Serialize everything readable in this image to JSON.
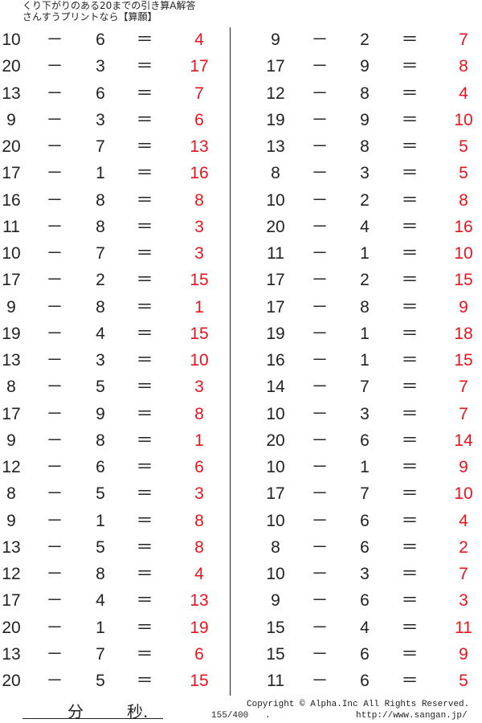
{
  "header": {
    "title": "くり下がりのある20までの引き算A解答",
    "subtitle": "さんすうプリントなら【算願】"
  },
  "operator": "－",
  "equals": "＝",
  "colors": {
    "answer": "#e8141e",
    "text": "#222222"
  },
  "left_problems": [
    {
      "a": "10",
      "b": "6",
      "answer": "4"
    },
    {
      "a": "20",
      "b": "3",
      "answer": "17"
    },
    {
      "a": "13",
      "b": "6",
      "answer": "7"
    },
    {
      "a": "9",
      "b": "3",
      "answer": "6"
    },
    {
      "a": "20",
      "b": "7",
      "answer": "13"
    },
    {
      "a": "17",
      "b": "1",
      "answer": "16"
    },
    {
      "a": "16",
      "b": "8",
      "answer": "8"
    },
    {
      "a": "11",
      "b": "8",
      "answer": "3"
    },
    {
      "a": "10",
      "b": "7",
      "answer": "3"
    },
    {
      "a": "17",
      "b": "2",
      "answer": "15"
    },
    {
      "a": "9",
      "b": "8",
      "answer": "1"
    },
    {
      "a": "19",
      "b": "4",
      "answer": "15"
    },
    {
      "a": "13",
      "b": "3",
      "answer": "10"
    },
    {
      "a": "8",
      "b": "5",
      "answer": "3"
    },
    {
      "a": "17",
      "b": "9",
      "answer": "8"
    },
    {
      "a": "9",
      "b": "8",
      "answer": "1"
    },
    {
      "a": "12",
      "b": "6",
      "answer": "6"
    },
    {
      "a": "8",
      "b": "5",
      "answer": "3"
    },
    {
      "a": "9",
      "b": "1",
      "answer": "8"
    },
    {
      "a": "13",
      "b": "5",
      "answer": "8"
    },
    {
      "a": "12",
      "b": "8",
      "answer": "4"
    },
    {
      "a": "17",
      "b": "4",
      "answer": "13"
    },
    {
      "a": "20",
      "b": "1",
      "answer": "19"
    },
    {
      "a": "13",
      "b": "7",
      "answer": "6"
    },
    {
      "a": "20",
      "b": "5",
      "answer": "15"
    }
  ],
  "right_problems": [
    {
      "a": "9",
      "b": "2",
      "answer": "7"
    },
    {
      "a": "17",
      "b": "9",
      "answer": "8"
    },
    {
      "a": "12",
      "b": "8",
      "answer": "4"
    },
    {
      "a": "19",
      "b": "9",
      "answer": "10"
    },
    {
      "a": "13",
      "b": "8",
      "answer": "5"
    },
    {
      "a": "8",
      "b": "3",
      "answer": "5"
    },
    {
      "a": "10",
      "b": "2",
      "answer": "8"
    },
    {
      "a": "20",
      "b": "4",
      "answer": "16"
    },
    {
      "a": "11",
      "b": "1",
      "answer": "10"
    },
    {
      "a": "17",
      "b": "2",
      "answer": "15"
    },
    {
      "a": "17",
      "b": "8",
      "answer": "9"
    },
    {
      "a": "19",
      "b": "1",
      "answer": "18"
    },
    {
      "a": "16",
      "b": "1",
      "answer": "15"
    },
    {
      "a": "14",
      "b": "7",
      "answer": "7"
    },
    {
      "a": "10",
      "b": "3",
      "answer": "7"
    },
    {
      "a": "20",
      "b": "6",
      "answer": "14"
    },
    {
      "a": "10",
      "b": "1",
      "answer": "9"
    },
    {
      "a": "17",
      "b": "7",
      "answer": "10"
    },
    {
      "a": "10",
      "b": "6",
      "answer": "4"
    },
    {
      "a": "8",
      "b": "6",
      "answer": "2"
    },
    {
      "a": "10",
      "b": "3",
      "answer": "7"
    },
    {
      "a": "9",
      "b": "6",
      "answer": "3"
    },
    {
      "a": "15",
      "b": "4",
      "answer": "11"
    },
    {
      "a": "15",
      "b": "6",
      "answer": "9"
    },
    {
      "a": "11",
      "b": "6",
      "answer": "5"
    }
  ],
  "footer": {
    "minutes_label": "分",
    "seconds_label": "秒.",
    "page": "155/400",
    "dot": ".",
    "copyright": "Copyright ©  Alpha.Inc All Rights Reserved.",
    "url": "http://www.sangan.jp/"
  }
}
